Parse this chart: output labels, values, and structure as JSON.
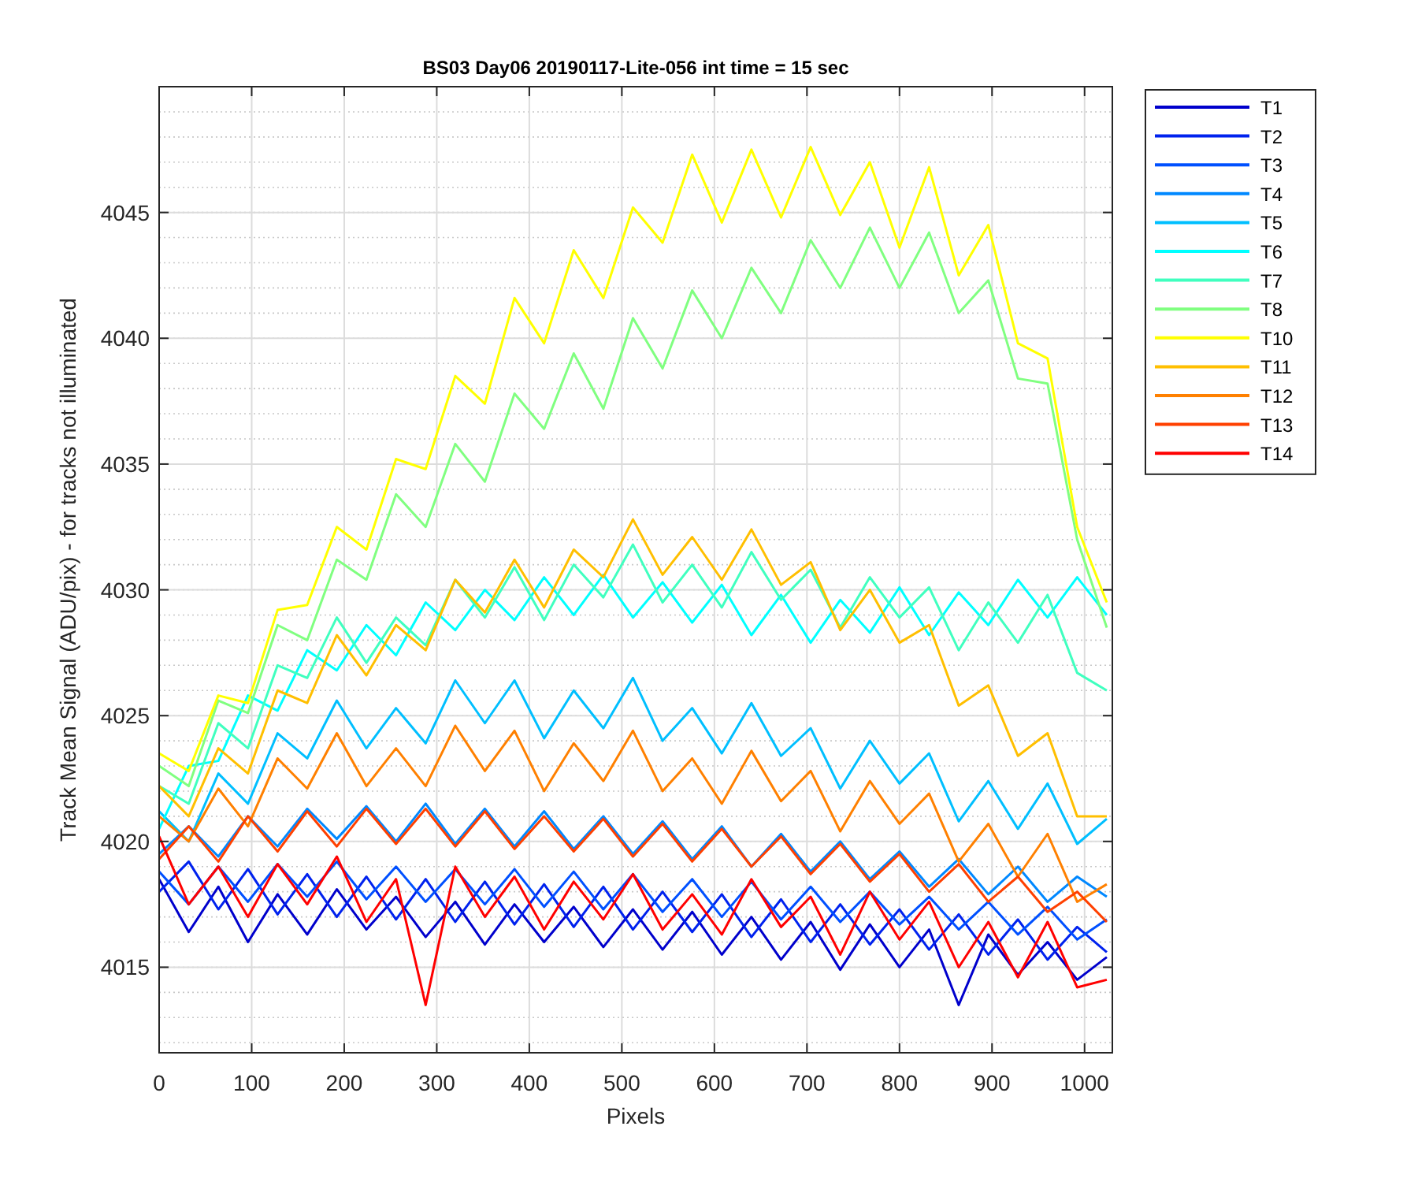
{
  "chart_data": {
    "type": "line",
    "title": "BS03 Day06 20190117-Lite-056 int time = 15 sec",
    "xlabel": "Pixels",
    "ylabel": "Track Mean Signal (ADU/pix) - for tracks not illuminated",
    "x": [
      0,
      32,
      64,
      96,
      128,
      160,
      192,
      224,
      256,
      288,
      320,
      352,
      384,
      416,
      448,
      480,
      512,
      544,
      576,
      608,
      640,
      672,
      704,
      736,
      768,
      800,
      832,
      864,
      896,
      928,
      960,
      992,
      1024
    ],
    "xlim": [
      0,
      1030
    ],
    "xticks": [
      0,
      100,
      200,
      300,
      400,
      500,
      600,
      700,
      800,
      900,
      1000
    ],
    "ylim": [
      4011.6,
      4050
    ],
    "yticks": [
      4015,
      4020,
      4025,
      4030,
      4035,
      4040,
      4045
    ],
    "grid": true,
    "legend": "right",
    "series": [
      {
        "name": "T1",
        "color": "#0000cc",
        "values": [
          4018.5,
          4016.4,
          4018.2,
          4016,
          4017.9,
          4016.3,
          4018.1,
          4016.5,
          4017.8,
          4016.2,
          4017.6,
          4015.9,
          4017.5,
          4016,
          4017.4,
          4015.8,
          4017.3,
          4015.7,
          4017.2,
          4015.5,
          4017,
          4015.3,
          4016.8,
          4014.9,
          4016.7,
          4015,
          4016.5,
          4013.5,
          4016.3,
          4014.7,
          4016,
          4014.5,
          4015.4
        ]
      },
      {
        "name": "T2",
        "color": "#0022ee",
        "values": [
          4018,
          4019.2,
          4017.3,
          4018.9,
          4017.1,
          4018.7,
          4017,
          4018.6,
          4016.9,
          4018.5,
          4016.8,
          4018.4,
          4016.7,
          4018.3,
          4016.6,
          4018.2,
          4016.5,
          4018,
          4016.4,
          4017.9,
          4016.2,
          4017.7,
          4016,
          4017.5,
          4015.9,
          4017.3,
          4015.7,
          4017.1,
          4015.5,
          4016.9,
          4015.3,
          4016.6,
          4015.6
        ]
      },
      {
        "name": "T3",
        "color": "#0050ff",
        "values": [
          4018.8,
          4017.5,
          4019,
          4017.6,
          4019.1,
          4017.8,
          4019.2,
          4017.7,
          4019,
          4017.6,
          4018.9,
          4017.5,
          4018.9,
          4017.4,
          4018.8,
          4017.3,
          4018.7,
          4017.2,
          4018.5,
          4017,
          4018.4,
          4016.9,
          4018.2,
          4016.8,
          4018,
          4016.7,
          4017.8,
          4016.5,
          4017.6,
          4016.3,
          4017.4,
          4016.1,
          4016.9
        ]
      },
      {
        "name": "T4",
        "color": "#0088ff",
        "values": [
          4019.5,
          4020.6,
          4019.4,
          4021,
          4019.8,
          4021.3,
          4020.1,
          4021.4,
          4020,
          4021.5,
          4019.9,
          4021.3,
          4019.8,
          4021.2,
          4019.7,
          4021,
          4019.5,
          4020.8,
          4019.3,
          4020.6,
          4019,
          4020.3,
          4018.8,
          4020,
          4018.5,
          4019.6,
          4018.2,
          4019.3,
          4017.9,
          4019,
          4017.6,
          4018.6,
          4017.8
        ]
      },
      {
        "name": "T5",
        "color": "#00bfff",
        "values": [
          4021.2,
          4020,
          4022.7,
          4021.5,
          4024.3,
          4023.3,
          4025.6,
          4023.7,
          4025.3,
          4023.9,
          4026.4,
          4024.7,
          4026.4,
          4024.1,
          4026,
          4024.5,
          4026.5,
          4024,
          4025.3,
          4023.5,
          4025.5,
          4023.4,
          4024.5,
          4022.1,
          4024,
          4022.3,
          4023.5,
          4020.8,
          4022.4,
          4020.5,
          4022.3,
          4019.9,
          4020.9
        ]
      },
      {
        "name": "T6",
        "color": "#00ffff",
        "values": [
          4020.5,
          4023,
          4023.2,
          4025.8,
          4025.2,
          4027.6,
          4026.8,
          4028.6,
          4027.4,
          4029.5,
          4028.4,
          4030,
          4028.8,
          4030.5,
          4029,
          4030.6,
          4028.9,
          4030.3,
          4028.7,
          4030.2,
          4028.2,
          4029.8,
          4027.9,
          4029.6,
          4028.3,
          4030.1,
          4028.2,
          4029.9,
          4028.6,
          4030.4,
          4028.9,
          4030.5,
          4029
        ]
      },
      {
        "name": "T7",
        "color": "#40ffbf",
        "values": [
          4022.2,
          4021.5,
          4024.7,
          4023.7,
          4027,
          4026.5,
          4028.9,
          4027.1,
          4028.9,
          4027.8,
          4030.4,
          4028.9,
          4030.9,
          4028.8,
          4031,
          4029.7,
          4031.8,
          4029.5,
          4031,
          4029.3,
          4031.5,
          4029.6,
          4030.8,
          4028.5,
          4030.5,
          4028.9,
          4030.1,
          4027.6,
          4029.5,
          4027.9,
          4029.8,
          4026.7,
          4026
        ]
      },
      {
        "name": "T8",
        "color": "#80ff80",
        "values": [
          4023,
          4022.2,
          4025.6,
          4025.1,
          4028.6,
          4028,
          4031.2,
          4030.4,
          4033.8,
          4032.5,
          4035.8,
          4034.3,
          4037.8,
          4036.4,
          4039.4,
          4037.2,
          4040.8,
          4038.8,
          4041.9,
          4040,
          4042.8,
          4041,
          4043.9,
          4042,
          4044.4,
          4042,
          4044.2,
          4041,
          4042.3,
          4038.4,
          4038.2,
          4032,
          4028.5
        ]
      },
      {
        "name": "T10",
        "color": "#ffff00",
        "values": [
          4023.5,
          4022.8,
          4025.8,
          4025.5,
          4029.2,
          4029.4,
          4032.5,
          4031.6,
          4035.2,
          4034.8,
          4038.5,
          4037.4,
          4041.6,
          4039.8,
          4043.5,
          4041.6,
          4045.2,
          4043.8,
          4047.3,
          4044.6,
          4047.5,
          4044.8,
          4047.6,
          4044.9,
          4047,
          4043.6,
          4046.8,
          4042.5,
          4044.5,
          4039.8,
          4039.2,
          4032.5,
          4029.5
        ]
      },
      {
        "name": "T11",
        "color": "#ffbf00",
        "values": [
          4022.2,
          4021,
          4023.7,
          4022.7,
          4026,
          4025.5,
          4028.2,
          4026.6,
          4028.6,
          4027.6,
          4030.4,
          4029.1,
          4031.2,
          4029.3,
          4031.6,
          4030.5,
          4032.8,
          4030.6,
          4032.1,
          4030.4,
          4032.4,
          4030.2,
          4031.1,
          4028.4,
          4030,
          4027.9,
          4028.6,
          4025.4,
          4026.2,
          4023.4,
          4024.3,
          4021,
          4021
        ]
      },
      {
        "name": "T12",
        "color": "#ff8000",
        "values": [
          4021,
          4020,
          4022.1,
          4020.6,
          4023.3,
          4022.1,
          4024.3,
          4022.2,
          4023.7,
          4022.2,
          4024.6,
          4022.8,
          4024.4,
          4022,
          4023.9,
          4022.4,
          4024.4,
          4022,
          4023.3,
          4021.5,
          4023.6,
          4021.6,
          4022.8,
          4020.4,
          4022.4,
          4020.7,
          4021.9,
          4019.2,
          4020.7,
          4018.6,
          4020.3,
          4017.6,
          4018.3
        ]
      },
      {
        "name": "T13",
        "color": "#ff4000",
        "values": [
          4019.3,
          4020.6,
          4019.2,
          4021,
          4019.6,
          4021.2,
          4019.8,
          4021.3,
          4019.9,
          4021.3,
          4019.8,
          4021.2,
          4019.7,
          4021,
          4019.6,
          4020.9,
          4019.4,
          4020.7,
          4019.2,
          4020.5,
          4019,
          4020.2,
          4018.7,
          4019.9,
          4018.4,
          4019.5,
          4018,
          4019.1,
          4017.6,
          4018.6,
          4017.2,
          4018,
          4016.8
        ]
      },
      {
        "name": "T14",
        "color": "#ff0000",
        "values": [
          4020.2,
          4017.5,
          4019,
          4017,
          4019.1,
          4017.5,
          4019.4,
          4016.8,
          4018.5,
          4013.5,
          4019,
          4017,
          4018.6,
          4016.5,
          4018.4,
          4016.9,
          4018.7,
          4016.5,
          4017.9,
          4016.3,
          4018.5,
          4016.6,
          4017.8,
          4015.5,
          4018,
          4016.1,
          4017.6,
          4015,
          4016.8,
          4014.6,
          4016.8,
          4014.2,
          4014.5
        ]
      }
    ]
  }
}
